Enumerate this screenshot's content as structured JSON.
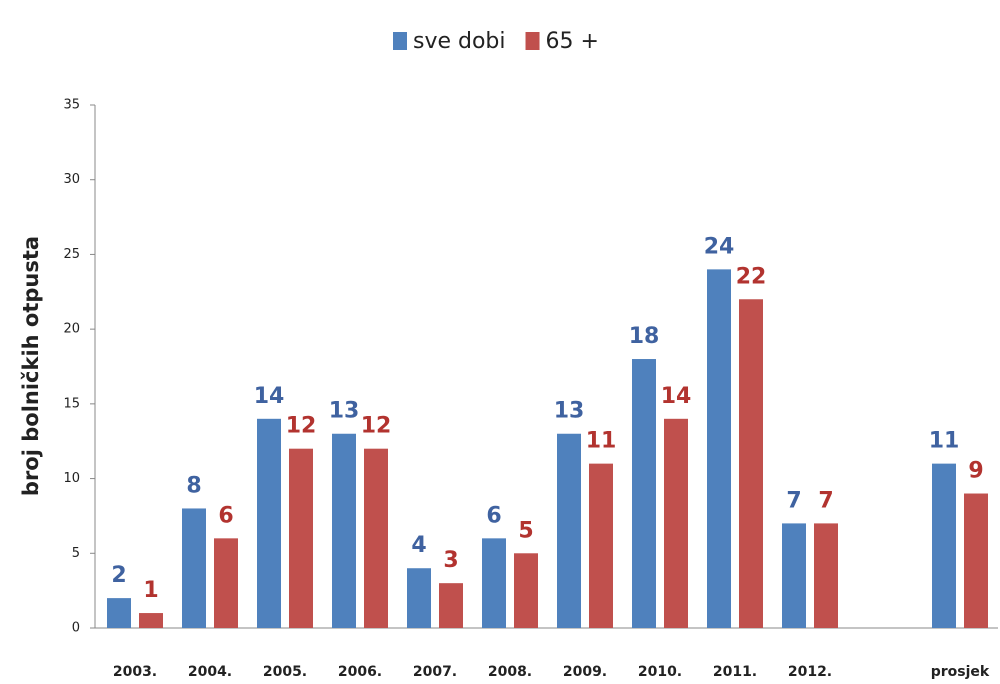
{
  "chart_data": {
    "type": "bar",
    "y_label": "broj bolničkih otpusta",
    "categories": [
      "2003.",
      "2004.",
      "2005.",
      "2006.",
      "2007.",
      "2008.",
      "2009.",
      "2010.",
      "2011.",
      "2012.",
      null,
      "prosjek"
    ],
    "series": [
      {
        "name": "sve dobi",
        "color": "#4f81bd",
        "values": [
          2,
          8,
          14,
          13,
          4,
          6,
          13,
          18,
          24,
          7,
          null,
          11
        ]
      },
      {
        "name": "65 +",
        "color": "#c0504d",
        "values": [
          1,
          6,
          12,
          12,
          3,
          5,
          11,
          14,
          22,
          7,
          null,
          9
        ]
      }
    ],
    "ylim": [
      0,
      35
    ],
    "yticks": [
      0,
      5,
      10,
      15,
      20,
      25,
      30,
      35
    ],
    "grid": false,
    "legend": "top"
  }
}
